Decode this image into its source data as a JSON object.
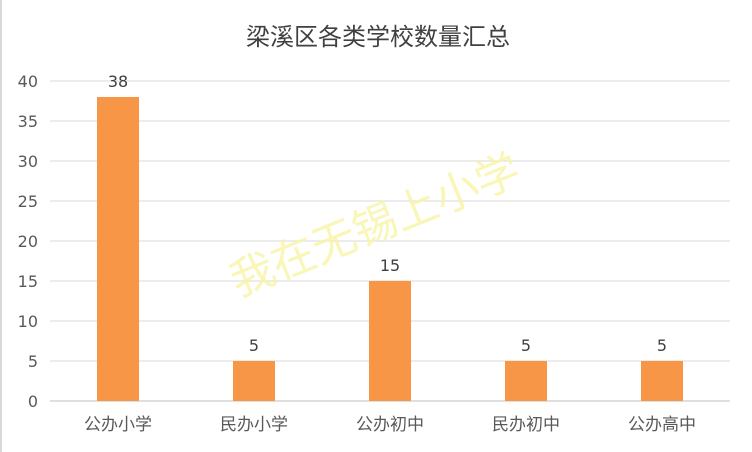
{
  "chart_data": {
    "type": "bar",
    "title": "梁溪区各类学校数量汇总",
    "categories": [
      "公办小学",
      "民办小学",
      "公办初中",
      "民办初中",
      "公办高中"
    ],
    "values": [
      38,
      5,
      15,
      5,
      5
    ],
    "xlabel": "",
    "ylabel": "",
    "ylim": [
      0,
      40
    ],
    "yticks": [
      0,
      5,
      10,
      15,
      20,
      25,
      30,
      35,
      40
    ],
    "grid": true,
    "legend": "none",
    "bar_color": "#F79646",
    "watermark": "我在无锡上小学"
  }
}
